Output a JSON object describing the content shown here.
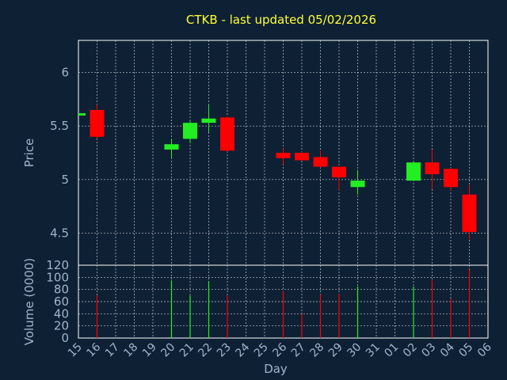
{
  "chart_data": [
    {
      "type": "candlestick",
      "title": "CTKB - last updated 05/02/2026",
      "ylabel": "Price",
      "ylim": [
        4.2,
        6.3
      ],
      "yticks": [
        4.5,
        5,
        5.5,
        6
      ],
      "ytick_labels": [
        "4.5",
        "5",
        "5.5",
        "6"
      ],
      "grid": true,
      "colors": {
        "up": "#22ee22",
        "down": "#ff0000",
        "grid": "#ffffff",
        "text": "#9fb6cc",
        "title": "#ffff33",
        "background": "#0e2034"
      },
      "x": [
        "15",
        "16",
        "20",
        "21",
        "22",
        "23",
        "26",
        "27",
        "28",
        "29",
        "30",
        "02",
        "03",
        "04",
        "05"
      ],
      "series": [
        {
          "open": [
            5.61,
            5.65,
            5.28,
            5.38,
            5.53,
            5.58,
            5.25,
            5.25,
            5.21,
            5.12,
            4.93,
            4.99,
            5.16,
            5.1,
            4.86
          ],
          "high": [
            5.62,
            5.7,
            5.38,
            5.55,
            5.7,
            5.59,
            5.29,
            5.26,
            5.27,
            5.12,
            5.09,
            5.16,
            5.28,
            5.11,
            4.95
          ],
          "low": [
            5.6,
            5.38,
            5.2,
            5.34,
            5.44,
            5.26,
            5.14,
            5.18,
            5.11,
            4.9,
            4.86,
            4.99,
            4.91,
            4.9,
            4.44
          ],
          "close": [
            5.62,
            5.4,
            5.33,
            5.53,
            5.57,
            5.27,
            5.2,
            5.18,
            5.12,
            5.02,
            4.99,
            5.16,
            5.05,
            4.93,
            4.51
          ]
        }
      ]
    },
    {
      "type": "bar",
      "xlabel": "Day",
      "ylabel": "Volume (0000)",
      "ylim": [
        0,
        120
      ],
      "yticks": [
        0,
        20,
        40,
        60,
        80,
        100,
        120
      ],
      "ytick_labels": [
        "0",
        "20",
        "40",
        "60",
        "80",
        "100",
        "120"
      ],
      "grid": true,
      "categories": [
        "15",
        "16",
        "17",
        "18",
        "19",
        "20",
        "21",
        "22",
        "23",
        "24",
        "25",
        "26",
        "27",
        "28",
        "29",
        "30",
        "31",
        "01",
        "02",
        "03",
        "04",
        "05",
        "06"
      ],
      "bars": [
        {
          "day": "16",
          "value": 70,
          "color": "#ff0000"
        },
        {
          "day": "20",
          "value": 95,
          "color": "#22ee22"
        },
        {
          "day": "21",
          "value": 70,
          "color": "#22ee22"
        },
        {
          "day": "22",
          "value": 94,
          "color": "#22ee22"
        },
        {
          "day": "23",
          "value": 70,
          "color": "#ff0000"
        },
        {
          "day": "26",
          "value": 78,
          "color": "#ff0000"
        },
        {
          "day": "27",
          "value": 40,
          "color": "#ff0000"
        },
        {
          "day": "28",
          "value": 72,
          "color": "#ff0000"
        },
        {
          "day": "29",
          "value": 73,
          "color": "#ff0000"
        },
        {
          "day": "30",
          "value": 85,
          "color": "#22ee22"
        },
        {
          "day": "02",
          "value": 85,
          "color": "#22ee22"
        },
        {
          "day": "03",
          "value": 95,
          "color": "#ff0000"
        },
        {
          "day": "04",
          "value": 65,
          "color": "#ff0000"
        },
        {
          "day": "05",
          "value": 113,
          "color": "#ff0000"
        }
      ]
    }
  ]
}
